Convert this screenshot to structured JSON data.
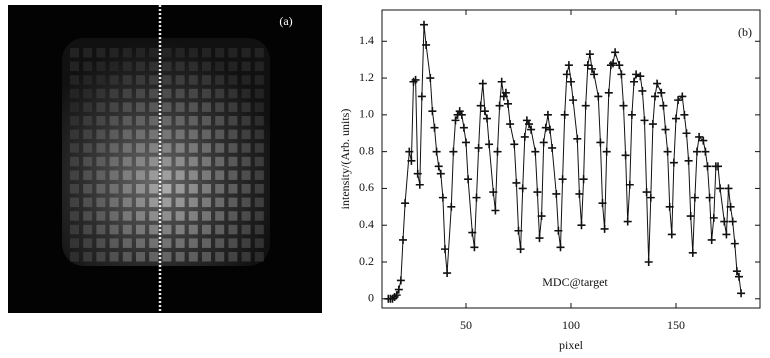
{
  "panel_a": {
    "label": "(a)"
  },
  "chart_data": {
    "type": "line",
    "panel_label": "(b)",
    "annotation": "MDC@target",
    "xlabel": "pixel",
    "ylabel": "intensity/(Arb. units)",
    "color": "#111111",
    "marker": "+",
    "x": [
      13,
      14,
      15,
      16,
      17,
      18,
      19,
      20,
      21,
      23,
      24,
      25,
      26,
      27,
      28,
      29,
      30,
      31,
      33,
      34,
      35,
      36,
      37,
      38,
      39,
      40,
      41,
      43,
      44,
      45,
      46,
      47,
      48,
      49,
      50,
      51,
      53,
      54,
      55,
      56,
      57,
      58,
      59,
      60,
      61,
      63,
      64,
      65,
      66,
      67,
      68,
      69,
      70,
      71,
      73,
      74,
      75,
      76,
      77,
      78,
      79,
      80,
      81,
      83,
      84,
      85,
      86,
      87,
      88,
      89,
      90,
      91,
      93,
      94,
      95,
      96,
      97,
      98,
      99,
      100,
      101,
      103,
      104,
      105,
      106,
      107,
      108,
      109,
      110,
      111,
      113,
      114,
      115,
      116,
      117,
      118,
      119,
      120,
      121,
      123,
      124,
      125,
      126,
      127,
      128,
      129,
      130,
      131,
      133,
      134,
      135,
      136,
      137,
      138,
      139,
      140,
      141,
      143,
      144,
      145,
      146,
      147,
      148,
      149,
      150,
      151,
      153,
      154,
      155,
      156,
      157,
      158,
      159,
      160,
      161,
      163,
      164,
      165,
      166,
      167,
      168,
      169,
      170,
      171,
      173,
      174,
      175,
      176,
      177,
      178,
      179,
      180,
      181
    ],
    "values": [
      0,
      0,
      0,
      0.01,
      0.02,
      0.05,
      0.1,
      0.32,
      0.52,
      0.8,
      0.75,
      1.18,
      1.19,
      0.68,
      0.62,
      1.1,
      1.49,
      1.38,
      1.2,
      1.02,
      0.93,
      0.8,
      0.72,
      0.68,
      0.55,
      0.27,
      0.14,
      0.5,
      0.8,
      0.97,
      1.0,
      1.02,
      1.0,
      0.93,
      0.85,
      0.65,
      0.36,
      0.28,
      0.55,
      0.82,
      1.05,
      1.17,
      1.02,
      0.98,
      0.84,
      0.58,
      0.48,
      0.8,
      1.05,
      1.18,
      1.1,
      1.12,
      1.06,
      0.95,
      0.84,
      0.63,
      0.37,
      0.27,
      0.6,
      0.88,
      0.97,
      0.95,
      0.92,
      0.8,
      0.58,
      0.33,
      0.45,
      0.85,
      0.93,
      1.0,
      0.92,
      0.82,
      0.57,
      0.37,
      0.28,
      0.65,
      1.0,
      1.22,
      1.27,
      1.18,
      1.08,
      0.87,
      0.57,
      0.4,
      0.65,
      1.05,
      1.27,
      1.33,
      1.25,
      1.22,
      1.1,
      0.85,
      0.52,
      0.38,
      0.8,
      1.12,
      1.27,
      1.28,
      1.34,
      1.27,
      1.22,
      1.05,
      0.78,
      0.42,
      0.62,
      1.0,
      1.18,
      1.22,
      1.21,
      1.13,
      0.97,
      0.58,
      0.2,
      0.55,
      0.95,
      1.1,
      1.17,
      1.12,
      1.05,
      0.92,
      0.8,
      0.5,
      0.35,
      0.74,
      0.98,
      1.08,
      1.1,
      1.0,
      0.9,
      0.75,
      0.45,
      0.25,
      0.55,
      0.8,
      0.88,
      0.86,
      0.8,
      0.72,
      0.55,
      0.32,
      0.44,
      0.72,
      0.72,
      0.6,
      0.42,
      0.35,
      0.6,
      0.5,
      0.42,
      0.3,
      0.15,
      0.12,
      0.03
    ],
    "xlim": [
      10,
      190
    ],
    "ylim": [
      -0.05,
      1.57
    ],
    "xticks": [
      50,
      100,
      150
    ],
    "yticks": [
      0,
      0.2,
      0.4,
      0.6,
      0.8,
      {
        "value": 1,
        "label": "1.0"
      },
      1.2,
      1.4
    ]
  }
}
